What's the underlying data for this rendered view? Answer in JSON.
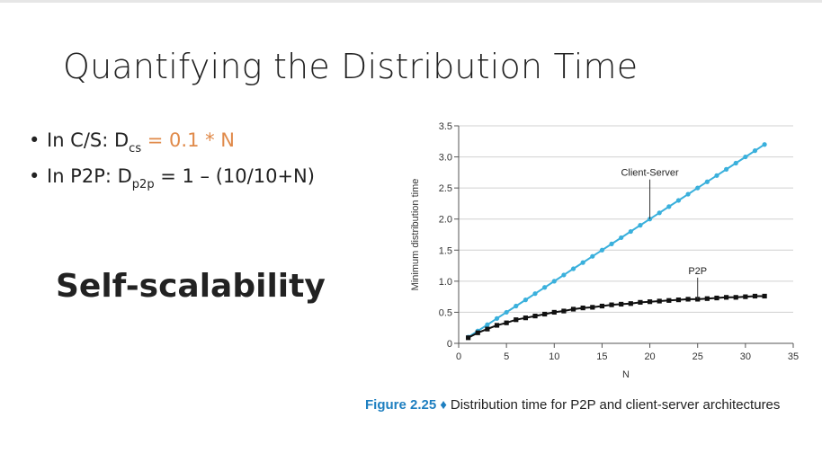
{
  "slide": {
    "title": "Quantifying the Distribution Time",
    "bullet1": {
      "label": "In C/S: D",
      "sub": "cs",
      "formula": " = 0.1 * N"
    },
    "bullet2": {
      "label": "In P2P: D",
      "sub": "p2p",
      "formula": " = 1 – (10/10+N)"
    },
    "heading": "Self-scalability",
    "caption_figure": "Figure 2.25",
    "caption_diamond": "♦",
    "caption_text": "Distribution time for P2P and client-server architectures",
    "accent_color": "#e08a4a",
    "caption_color": "#1e7fc0"
  },
  "chart_data": {
    "type": "line",
    "xlabel": "N",
    "ylabel": "Minimum distribution time",
    "xlim": [
      0,
      35
    ],
    "ylim": [
      0,
      3.5
    ],
    "xticks": [
      0,
      5,
      10,
      15,
      20,
      25,
      30,
      35
    ],
    "yticks": [
      0,
      0.5,
      1.0,
      1.5,
      2.0,
      2.5,
      3.0,
      3.5
    ],
    "ytick_labels": [
      "0",
      "0.5",
      "1.0",
      "1.5",
      "2.0",
      "2.5",
      "3.0",
      "3.5"
    ],
    "grid": "horizontal",
    "x": [
      1,
      2,
      3,
      4,
      5,
      6,
      7,
      8,
      9,
      10,
      11,
      12,
      13,
      14,
      15,
      16,
      17,
      18,
      19,
      20,
      21,
      22,
      23,
      24,
      25,
      26,
      27,
      28,
      29,
      30,
      31,
      32
    ],
    "series": [
      {
        "name": "Client-Server",
        "color": "#3ab0dc",
        "marker": "circle",
        "values": [
          0.1,
          0.2,
          0.3,
          0.4,
          0.5,
          0.6,
          0.7,
          0.8,
          0.9,
          1.0,
          1.1,
          1.2,
          1.3,
          1.4,
          1.5,
          1.6,
          1.7,
          1.8,
          1.9,
          2.0,
          2.1,
          2.2,
          2.3,
          2.4,
          2.5,
          2.6,
          2.7,
          2.8,
          2.9,
          3.0,
          3.1,
          3.2
        ]
      },
      {
        "name": "P2P",
        "color": "#111111",
        "marker": "square",
        "values": [
          0.09,
          0.17,
          0.23,
          0.29,
          0.33,
          0.38,
          0.41,
          0.44,
          0.47,
          0.5,
          0.52,
          0.55,
          0.57,
          0.58,
          0.6,
          0.62,
          0.63,
          0.64,
          0.66,
          0.67,
          0.68,
          0.69,
          0.7,
          0.71,
          0.71,
          0.72,
          0.73,
          0.74,
          0.74,
          0.75,
          0.76,
          0.76
        ]
      }
    ],
    "annotations": [
      {
        "text": "Client-Server",
        "series": 0,
        "x": 20
      },
      {
        "text": "P2P",
        "series": 1,
        "x": 25
      }
    ]
  }
}
